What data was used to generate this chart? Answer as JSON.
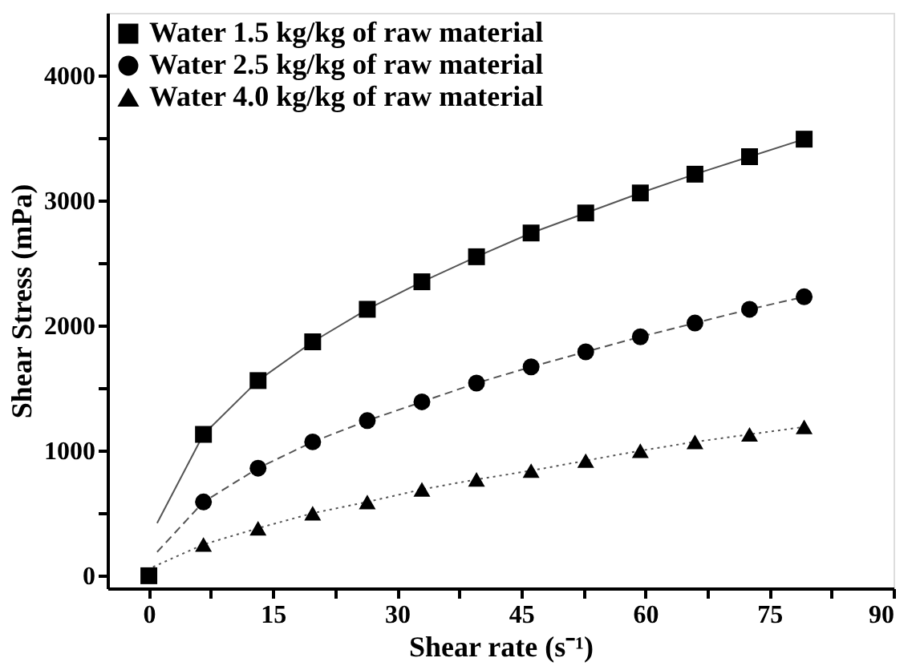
{
  "chart_data": {
    "type": "scatter",
    "xlabel": "Shear rate (s⁻¹)",
    "ylabel": "Shear Stress (mPa)",
    "x": [
      0,
      6.6,
      13.2,
      19.8,
      26.4,
      33,
      39.6,
      46.2,
      52.8,
      59.4,
      66,
      72.6,
      79.2
    ],
    "xlim": [
      -5,
      90
    ],
    "ylim": [
      -100,
      4500
    ],
    "xticks": [
      0,
      {
        "value": 7.5,
        "label": null
      },
      15,
      {
        "value": 22.5,
        "label": null
      },
      30,
      {
        "value": 37.5,
        "label": null
      },
      45,
      {
        "value": 52.5,
        "label": null
      },
      60,
      {
        "value": 67.5,
        "label": null
      },
      75,
      {
        "value": 82.5,
        "label": null
      },
      90
    ],
    "yticks": [
      0,
      {
        "value": 500,
        "label": null
      },
      1000,
      {
        "value": 1500,
        "label": null
      },
      2000,
      {
        "value": 2500,
        "label": null
      },
      3000,
      {
        "value": 3500,
        "label": null
      },
      4000
    ],
    "grid": false,
    "legend": "top left",
    "series": [
      {
        "name": "Water 1.5 kg/kg of raw material",
        "color": "#000000",
        "marker": "square",
        "values": [
          0,
          1130,
          1560,
          1870,
          2130,
          2350,
          2550,
          2740,
          2900,
          3060,
          3210,
          3350,
          3490
        ]
      },
      {
        "name": "Water 2.5 kg/kg of raw material",
        "color": "#000000",
        "marker": "circle",
        "values": [
          null,
          590,
          860,
          1070,
          1240,
          1390,
          1540,
          1670,
          1790,
          1910,
          2020,
          2130,
          2230
        ]
      },
      {
        "name": "Water 4.0 kg/kg of raw material",
        "color": "#000000",
        "marker": "triangle",
        "values": [
          null,
          250,
          380,
          500,
          590,
          690,
          770,
          840,
          920,
          1000,
          1070,
          1130,
          1190
        ]
      },
      {
        "type": "line",
        "color": "#555555",
        "line_style": "solid",
        "x": [
          1,
          6.6,
          13.2,
          19.8,
          26.4,
          33,
          39.6,
          46.2,
          52.8,
          59.4,
          66,
          72.6,
          79.2
        ],
        "values": [
          420,
          1130,
          1560,
          1870,
          2130,
          2350,
          2550,
          2740,
          2900,
          3060,
          3210,
          3350,
          3490
        ]
      },
      {
        "type": "line",
        "color": "#555555",
        "line_style": "dashed",
        "x": [
          1,
          6.6,
          13.2,
          19.8,
          26.4,
          33,
          39.6,
          46.2,
          52.8,
          59.4,
          66,
          72.6,
          79.2
        ],
        "values": [
          190,
          590,
          860,
          1070,
          1240,
          1390,
          1540,
          1670,
          1790,
          1910,
          2020,
          2130,
          2230
        ]
      },
      {
        "type": "line",
        "color": "#555555",
        "line_style": "dotted",
        "x": [
          0.5,
          6.6,
          13.2,
          19.8,
          26.4,
          33,
          39.6,
          46.2,
          52.8,
          59.4,
          66,
          72.6,
          79.2
        ],
        "values": [
          70,
          250,
          380,
          500,
          590,
          690,
          770,
          840,
          920,
          1000,
          1070,
          1130,
          1190
        ]
      }
    ]
  }
}
